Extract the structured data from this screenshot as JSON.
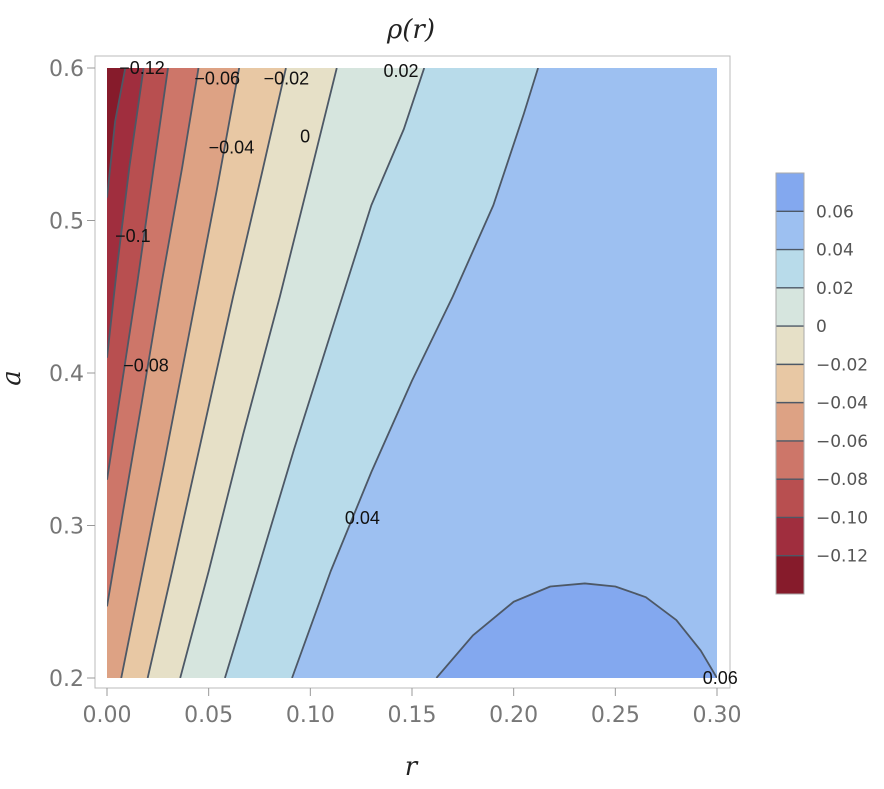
{
  "chart_data": {
    "type": "contour",
    "title": "ρ(r)",
    "xlabel": "r",
    "ylabel": "a",
    "xlim": [
      0.0,
      0.3
    ],
    "ylim": [
      0.2,
      0.6
    ],
    "x_ticks": [
      "0.00",
      "0.05",
      "0.10",
      "0.15",
      "0.20",
      "0.25",
      "0.30"
    ],
    "y_ticks": [
      "0.2",
      "0.3",
      "0.4",
      "0.5",
      "0.6"
    ],
    "colorbar": {
      "ticks": [
        "0.06",
        "0.04",
        "0.02",
        "0",
        "−0.02",
        "−0.04",
        "−0.06",
        "−0.08",
        "−0.10",
        "−0.12"
      ],
      "tick_values": [
        0.06,
        0.04,
        0.02,
        0,
        -0.02,
        -0.04,
        -0.06,
        -0.08,
        -0.1,
        -0.12
      ],
      "range": [
        -0.14,
        0.08
      ],
      "colors": [
        "#83a8ef",
        "#9dc0f1",
        "#b8dbea",
        "#d6e5de",
        "#e6e0c7",
        "#e8c8a4",
        "#dda284",
        "#cd7669",
        "#b84f50",
        "#a02e3e",
        "#861b2b"
      ]
    },
    "regions": [
      {
        "level_range": [
          -0.14,
          -0.12
        ],
        "color": "#861b2b"
      },
      {
        "level_range": [
          -0.12,
          -0.1
        ],
        "color": "#a02e3e"
      },
      {
        "level_range": [
          -0.1,
          -0.08
        ],
        "color": "#b84f50"
      },
      {
        "level_range": [
          -0.08,
          -0.06
        ],
        "color": "#cd7669"
      },
      {
        "level_range": [
          -0.06,
          -0.04
        ],
        "color": "#dda284"
      },
      {
        "level_range": [
          -0.04,
          -0.02
        ],
        "color": "#e8c8a4"
      },
      {
        "level_range": [
          -0.02,
          0.0
        ],
        "color": "#e6e0c7"
      },
      {
        "level_range": [
          0.0,
          0.02
        ],
        "color": "#d6e5de"
      },
      {
        "level_range": [
          0.02,
          0.04
        ],
        "color": "#b8dbea"
      },
      {
        "level_range": [
          0.04,
          0.06
        ],
        "color": "#9dc0f1"
      },
      {
        "level_range": [
          0.06,
          0.08
        ],
        "color": "#83a8ef"
      }
    ],
    "contours": [
      {
        "level": -0.12,
        "points": [
          [
            0.0,
            0.515
          ],
          [
            0.004,
            0.565
          ],
          [
            0.009,
            0.6
          ]
        ]
      },
      {
        "level": -0.1,
        "points": [
          [
            0.0,
            0.41
          ],
          [
            0.005,
            0.47
          ],
          [
            0.011,
            0.535
          ],
          [
            0.018,
            0.6
          ]
        ]
      },
      {
        "level": -0.08,
        "points": [
          [
            0.0,
            0.33
          ],
          [
            0.007,
            0.39
          ],
          [
            0.015,
            0.46
          ],
          [
            0.023,
            0.535
          ],
          [
            0.03,
            0.6
          ]
        ]
      },
      {
        "level": -0.06,
        "points": [
          [
            0.0,
            0.247
          ],
          [
            0.008,
            0.31
          ],
          [
            0.017,
            0.38
          ],
          [
            0.027,
            0.46
          ],
          [
            0.037,
            0.535
          ],
          [
            0.045,
            0.6
          ]
        ]
      },
      {
        "level": -0.04,
        "points": [
          [
            0.007,
            0.2
          ],
          [
            0.016,
            0.26
          ],
          [
            0.028,
            0.34
          ],
          [
            0.041,
            0.43
          ],
          [
            0.054,
            0.52
          ],
          [
            0.065,
            0.6
          ]
        ]
      },
      {
        "level": -0.02,
        "points": [
          [
            0.02,
            0.2
          ],
          [
            0.032,
            0.27
          ],
          [
            0.047,
            0.36
          ],
          [
            0.062,
            0.45
          ],
          [
            0.076,
            0.53
          ],
          [
            0.088,
            0.6
          ]
        ]
      },
      {
        "level": 0,
        "points": [
          [
            0.036,
            0.2
          ],
          [
            0.05,
            0.27
          ],
          [
            0.067,
            0.36
          ],
          [
            0.085,
            0.45
          ],
          [
            0.1,
            0.53
          ],
          [
            0.113,
            0.6
          ]
        ]
      },
      {
        "level": 0.02,
        "points": [
          [
            0.058,
            0.2
          ],
          [
            0.074,
            0.27
          ],
          [
            0.092,
            0.35
          ],
          [
            0.111,
            0.43
          ],
          [
            0.13,
            0.51
          ],
          [
            0.146,
            0.56
          ],
          [
            0.156,
            0.6
          ]
        ]
      },
      {
        "level": 0.04,
        "points": [
          [
            0.091,
            0.2
          ],
          [
            0.11,
            0.27
          ],
          [
            0.13,
            0.335
          ],
          [
            0.15,
            0.395
          ],
          [
            0.17,
            0.45
          ],
          [
            0.19,
            0.51
          ],
          [
            0.205,
            0.57
          ],
          [
            0.212,
            0.6
          ]
        ]
      },
      {
        "level": 0.06,
        "points": [
          [
            0.162,
            0.2
          ],
          [
            0.18,
            0.228
          ],
          [
            0.2,
            0.25
          ],
          [
            0.218,
            0.26
          ],
          [
            0.235,
            0.262
          ],
          [
            0.25,
            0.26
          ],
          [
            0.265,
            0.253
          ],
          [
            0.28,
            0.238
          ],
          [
            0.292,
            0.218
          ],
          [
            0.3,
            0.2
          ]
        ]
      }
    ],
    "contour_labels": [
      {
        "text": "−0.12",
        "x": 0.006,
        "y": 0.6
      },
      {
        "text": "−0.06",
        "x": 0.043,
        "y": 0.593
      },
      {
        "text": "−0.02",
        "x": 0.077,
        "y": 0.593
      },
      {
        "text": "0.02",
        "x": 0.136,
        "y": 0.598
      },
      {
        "text": "−0.04",
        "x": 0.05,
        "y": 0.548
      },
      {
        "text": "0",
        "x": 0.095,
        "y": 0.555
      },
      {
        "text": "−0.1",
        "x": 0.004,
        "y": 0.49
      },
      {
        "text": "−0.08",
        "x": 0.008,
        "y": 0.405
      },
      {
        "text": "0.04",
        "x": 0.117,
        "y": 0.305
      },
      {
        "text": "0.06",
        "x": 0.293,
        "y": 0.2
      }
    ]
  }
}
